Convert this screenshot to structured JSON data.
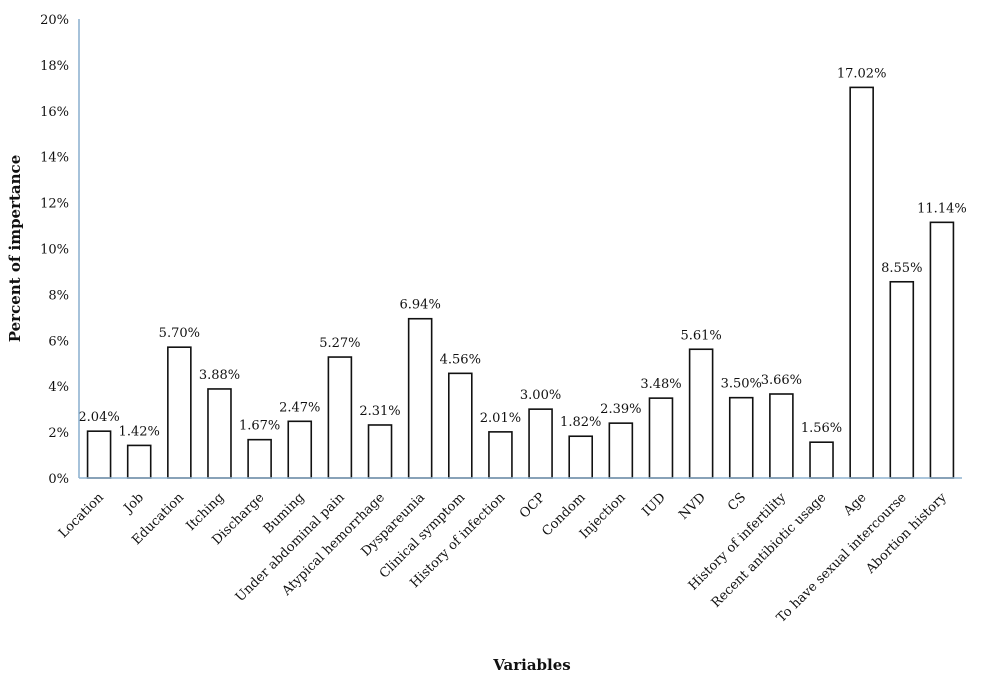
{
  "chart_data": {
    "type": "bar",
    "title": "",
    "xlabel": "Variables",
    "ylabel": "Percent of impertance",
    "ylim": [
      0,
      20
    ],
    "yticks": [
      "0%",
      "2%",
      "4%",
      "6%",
      "8%",
      "10%",
      "12%",
      "14%",
      "16%",
      "18%",
      "20%"
    ],
    "grid": false,
    "legend": "none",
    "categories": [
      "Location",
      "Job",
      "Education",
      "Itching",
      "Discharge",
      "Buming",
      "Under abdominal pain",
      "Atypical hemorrhage",
      "Dyspareunia",
      "Clinical symptom",
      "History of infection",
      "OCP",
      "Condom",
      "Injection",
      "IUD",
      "NVD",
      "CS",
      "History of infertility",
      "Recent antibiotic usage",
      "Age",
      "To have sexual intercourse",
      "Abortion history"
    ],
    "values": [
      2.04,
      1.42,
      5.7,
      3.88,
      1.67,
      2.47,
      5.27,
      2.31,
      6.94,
      4.56,
      2.01,
      3.0,
      1.82,
      2.39,
      3.48,
      5.61,
      3.5,
      3.66,
      1.56,
      17.02,
      8.55,
      11.14
    ],
    "data_labels": [
      "2.04%",
      "1.42%",
      "5.70%",
      "3.88%",
      "1.67%",
      "2.47%",
      "5.27%",
      "2.31%",
      "6.94%",
      "4.56%",
      "2.01%",
      "3.00%",
      "1.82%",
      "2.39%",
      "3.48%",
      "5.61%",
      "3.50%",
      "3.66%",
      "1.56%",
      "17.02%",
      "8.55%",
      "11.14%"
    ],
    "colors": {
      "bar_fill": "#ffffff",
      "bar_stroke": "#111111",
      "axis": "#8fb3d0"
    }
  }
}
